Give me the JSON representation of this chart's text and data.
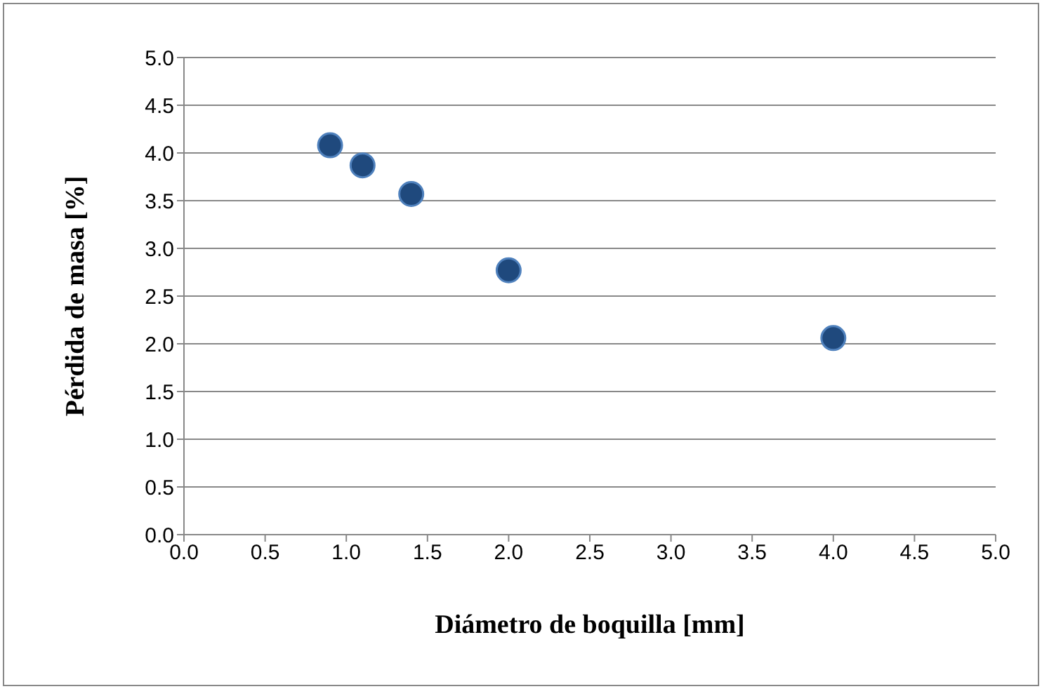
{
  "chart_data": {
    "type": "scatter",
    "xlabel": "Diámetro de boquilla [mm]",
    "ylabel": "Pérdida de masa [%]",
    "x": [
      0.9,
      1.1,
      1.4,
      2.0,
      4.0
    ],
    "series": [
      {
        "color": "#1f497d",
        "values": [
          4.08,
          3.87,
          3.57,
          2.77,
          2.06
        ]
      }
    ],
    "xlim": [
      0,
      5
    ],
    "xticks": [
      {
        "value": 0,
        "label": "0.0"
      },
      {
        "value": 0.5,
        "label": "0.5"
      },
      {
        "value": 1,
        "label": "1.0"
      },
      {
        "value": 1.5,
        "label": "1.5"
      },
      {
        "value": 2,
        "label": "2.0"
      },
      {
        "value": 2.5,
        "label": "2.5"
      },
      {
        "value": 3,
        "label": "3.0"
      },
      {
        "value": 3.5,
        "label": "3.5"
      },
      {
        "value": 4,
        "label": "4.0"
      },
      {
        "value": 4.5,
        "label": "4.5"
      },
      {
        "value": 5,
        "label": "5.0"
      }
    ],
    "ylim": [
      0,
      5
    ],
    "yticks": [
      {
        "value": 0,
        "label": "0.0"
      },
      {
        "value": 0.5,
        "label": "0.5"
      },
      {
        "value": 1,
        "label": "1.0"
      },
      {
        "value": 1.5,
        "label": "1.5"
      },
      {
        "value": 2,
        "label": "2.0"
      },
      {
        "value": 2.5,
        "label": "2.5"
      },
      {
        "value": 3,
        "label": "3.0"
      },
      {
        "value": 3.5,
        "label": "3.5"
      },
      {
        "value": 4,
        "label": "4.0"
      },
      {
        "value": 4.5,
        "label": "4.5"
      },
      {
        "value": 5,
        "label": "5.0"
      }
    ],
    "grid": "y",
    "marker": "circle",
    "legend": false
  }
}
